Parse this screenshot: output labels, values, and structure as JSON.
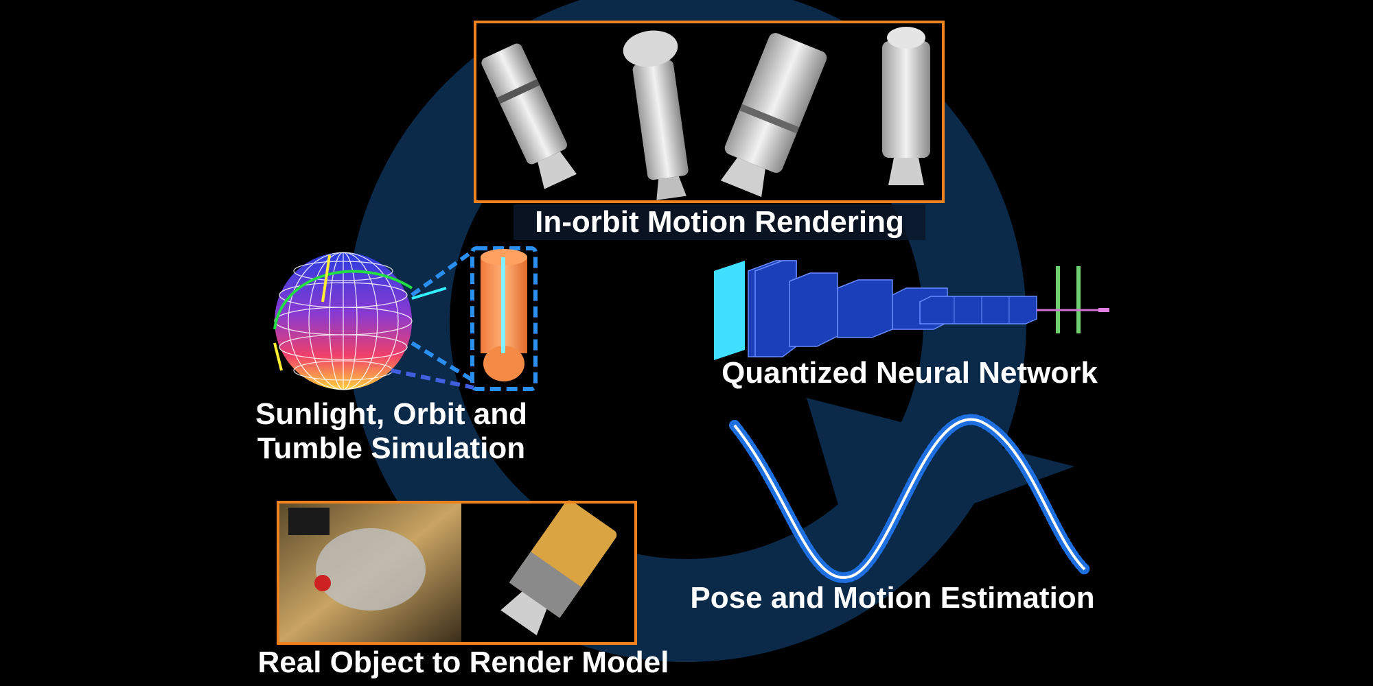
{
  "colors": {
    "background": "#000000",
    "cycle_arrow": "#0b2a4a",
    "frame_orange": "#f0821e",
    "cnn_blue": "#1a3fb8",
    "cnn_input_cyan": "#3fe0ff",
    "sine_curve": "#ffffff",
    "scatter_points": "#1e6fe0"
  },
  "labels": {
    "rendering": "In-orbit Motion Rendering",
    "network": "Quantized Neural Network",
    "simulation_line1": "Sunlight, Orbit and",
    "simulation_line2": "Tumble Simulation",
    "estimation": "Pose and Motion Estimation",
    "real_object": "Real Object to Render Model"
  },
  "icons": {
    "cycle": "circular-arrow-icon",
    "globe": "sphere-grid-icon",
    "cylinder": "cylinder-model-icon",
    "spacecraft": "spacecraft-render-icon",
    "network": "cnn-layers-icon",
    "curve": "sine-fit-icon"
  }
}
